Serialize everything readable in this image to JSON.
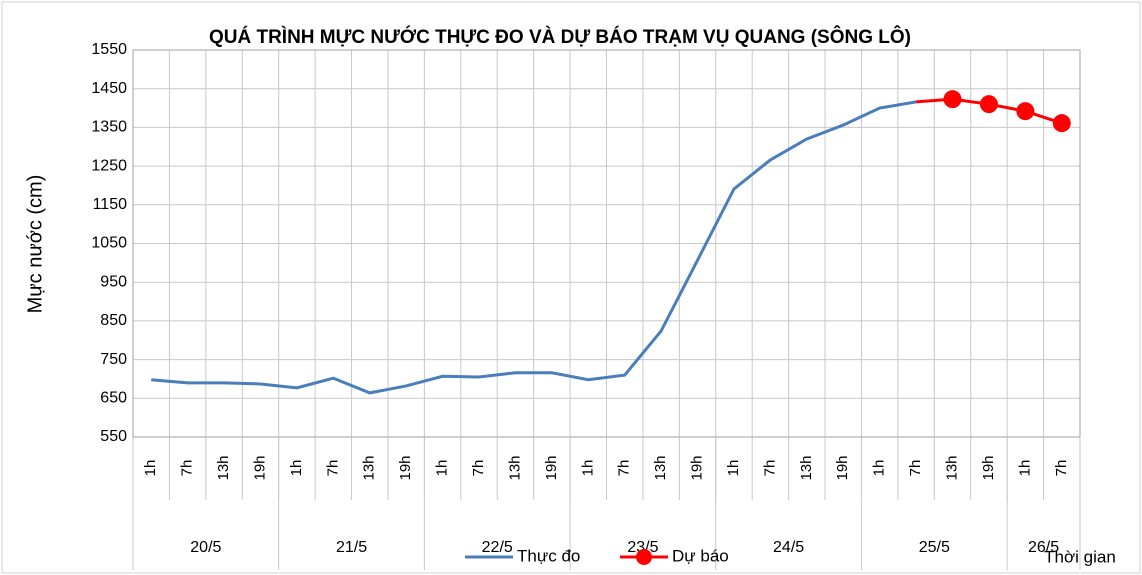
{
  "chart_data": {
    "type": "line",
    "title": "QUÁ TRÌNH MỰC NƯỚC THỰC ĐO VÀ DỰ BÁO TRẠM VỤ QUANG (SÔNG LÔ)",
    "y_label": "Mực nước (cm)",
    "x_label": "Thời gian",
    "categories": [
      "1h",
      "7h",
      "13h",
      "19h",
      "1h",
      "7h",
      "13h",
      "19h",
      "1h",
      "7h",
      "13h",
      "19h",
      "1h",
      "7h",
      "13h",
      "19h",
      "1h",
      "7h",
      "13h",
      "19h",
      "1h",
      "7h",
      "13h",
      "19h",
      "1h",
      "7h"
    ],
    "category_groups": [
      {
        "label": "20/5",
        "size": 4
      },
      {
        "label": "21/5",
        "size": 4
      },
      {
        "label": "22/5",
        "size": 4
      },
      {
        "label": "23/5",
        "size": 4
      },
      {
        "label": "24/5",
        "size": 4
      },
      {
        "label": "25/5",
        "size": 4
      },
      {
        "label": "26/5",
        "size": 2
      }
    ],
    "series": [
      {
        "name": "Thực đo",
        "color": "#4a7ebb",
        "values": [
          698,
          690,
          690,
          687,
          677,
          702,
          664,
          682,
          707,
          705,
          716,
          716,
          698,
          710,
          824,
          1007,
          1191,
          1266,
          1320,
          1356,
          1400,
          1416,
          null,
          null,
          null,
          null
        ]
      },
      {
        "name": "Dự báo",
        "color": "#ff0000",
        "values": [
          null,
          null,
          null,
          null,
          null,
          null,
          null,
          null,
          null,
          null,
          null,
          null,
          null,
          null,
          null,
          null,
          null,
          null,
          null,
          null,
          null,
          1416,
          1423,
          1410,
          1392,
          1361
        ]
      }
    ],
    "ylim": [
      550,
      1550
    ],
    "yticks": [
      550,
      650,
      750,
      850,
      950,
      1050,
      1150,
      1250,
      1350,
      1450,
      1550
    ],
    "grid": true,
    "legend": "bottom"
  }
}
